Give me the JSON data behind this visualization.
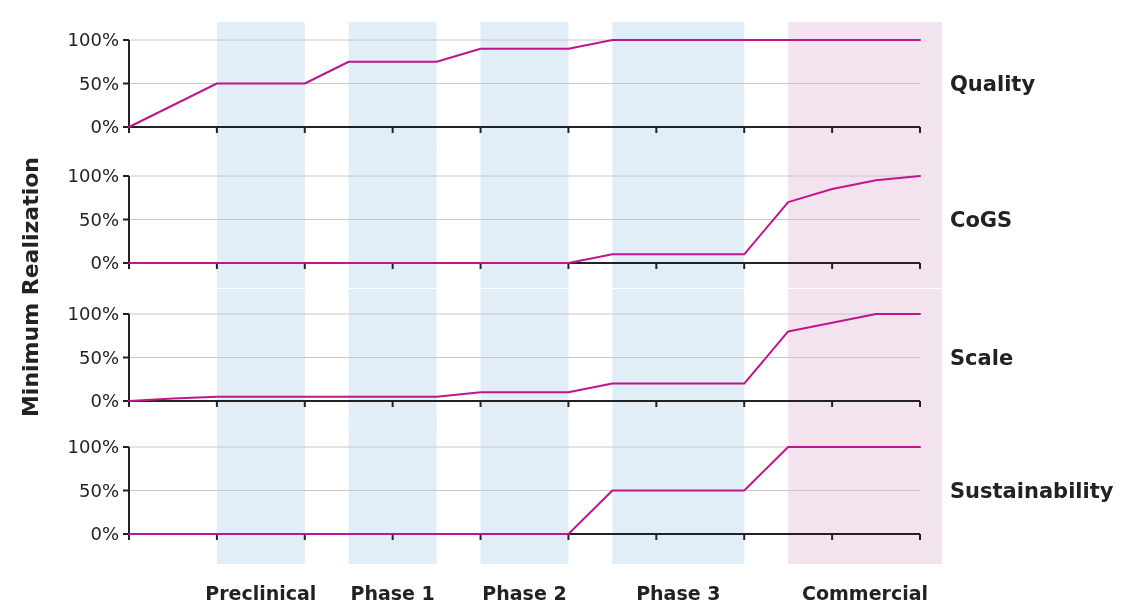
{
  "chart_data": [
    {
      "type": "line",
      "ylabel": "Minimum Realization",
      "categories": [
        null,
        null,
        null,
        null,
        null,
        null,
        null,
        null,
        null,
        null,
        null,
        null,
        null,
        null,
        null,
        null,
        null,
        null,
        null
      ],
      "ylim": [
        0,
        100
      ],
      "yticks": [
        {
          "value": 0,
          "label": "0%"
        },
        {
          "value": 50,
          "label": "50%"
        },
        {
          "value": 100,
          "label": "100%"
        }
      ],
      "grid": "y",
      "series": [
        {
          "name": "Quality",
          "color": "#c0168c",
          "values": [
            0,
            25,
            50,
            50,
            50,
            75,
            75,
            75,
            90,
            90,
            90,
            100,
            100,
            100,
            100,
            100,
            100,
            100,
            100
          ]
        }
      ]
    },
    {
      "type": "line",
      "categories": [
        null,
        null,
        null,
        null,
        null,
        null,
        null,
        null,
        null,
        null,
        null,
        null,
        null,
        null,
        null,
        null,
        null,
        null,
        null
      ],
      "ylim": [
        0,
        100
      ],
      "yticks": [
        {
          "value": 0,
          "label": "0%"
        },
        {
          "value": 50,
          "label": "50%"
        },
        {
          "value": 100,
          "label": "100%"
        }
      ],
      "grid": "y",
      "series": [
        {
          "name": "CoGS",
          "color": "#c0168c",
          "values": [
            0,
            0,
            0,
            0,
            0,
            0,
            0,
            0,
            0,
            0,
            0,
            10,
            10,
            10,
            10,
            70,
            85,
            95,
            100
          ]
        }
      ]
    },
    {
      "type": "line",
      "categories": [
        null,
        null,
        null,
        null,
        null,
        null,
        null,
        null,
        null,
        null,
        null,
        null,
        null,
        null,
        null,
        null,
        null,
        null,
        null
      ],
      "ylim": [
        0,
        100
      ],
      "yticks": [
        {
          "value": 0,
          "label": "0%"
        },
        {
          "value": 50,
          "label": "50%"
        },
        {
          "value": 100,
          "label": "100%"
        }
      ],
      "grid": "y",
      "series": [
        {
          "name": "Scale",
          "color": "#c0168c",
          "values": [
            0,
            3,
            5,
            5,
            5,
            5,
            5,
            5,
            10,
            10,
            10,
            20,
            20,
            20,
            20,
            80,
            90,
            100,
            100
          ]
        }
      ]
    },
    {
      "type": "line",
      "categories": [
        null,
        null,
        null,
        null,
        null,
        null,
        null,
        null,
        null,
        null,
        null,
        null,
        null,
        null,
        null,
        null,
        null,
        null,
        null
      ],
      "ylim": [
        0,
        100
      ],
      "yticks": [
        {
          "value": 0,
          "label": "0%"
        },
        {
          "value": 50,
          "label": "50%"
        },
        {
          "value": 100,
          "label": "100%"
        }
      ],
      "grid": "y",
      "annotations": [
        "Preclinical",
        "Phase 1",
        "Phase 2",
        "Phase 3",
        "Commercial"
      ],
      "series": [
        {
          "name": "Sustainability",
          "color": "#c0168c",
          "values": [
            0,
            0,
            0,
            0,
            0,
            0,
            0,
            0,
            0,
            0,
            0,
            50,
            50,
            50,
            50,
            100,
            100,
            100,
            100
          ]
        }
      ]
    }
  ]
}
